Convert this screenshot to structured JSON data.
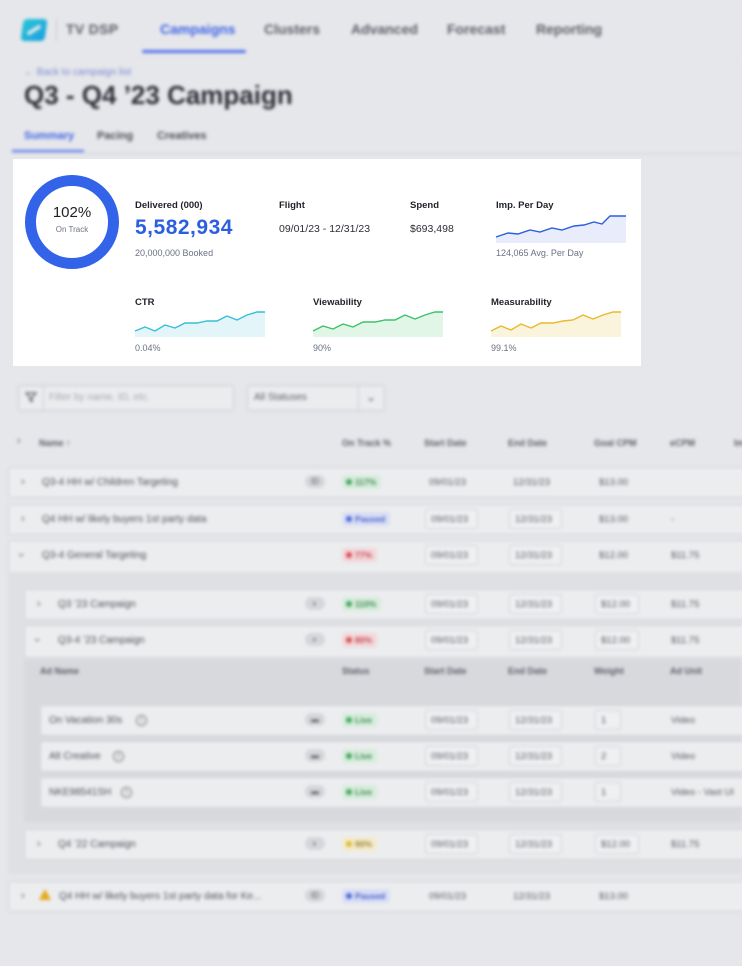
{
  "nav": {
    "brand": "TV DSP",
    "tabs": [
      "Campaigns",
      "Clusters",
      "Advanced",
      "Forecast",
      "Reporting"
    ]
  },
  "header": {
    "back_link": "← Back to campaign list",
    "title": "Q3 - Q4 ’23 Campaign"
  },
  "subtabs": [
    "Summary",
    "Pacing",
    "Creatives"
  ],
  "summary": {
    "pacing_percent": "102%",
    "pacing_status": "On Track",
    "delivered_label": "Delivered (000)",
    "delivered_value": "5,582,934",
    "booked": "20,000,000 Booked",
    "flight_label": "Flight",
    "flight_value": "09/01/23 - 12/31/23",
    "spend_label": "Spend",
    "spend_value": "$693,498",
    "imp_label": "Imp. Per Day",
    "imp_sub": "124,065 Avg. Per Day",
    "ctr_label": "CTR",
    "ctr_value": "0.04%",
    "viewability_label": "Viewability",
    "viewability_value": "90%",
    "measurability_label": "Measurability",
    "measurability_value": "99.1%",
    "colors": {
      "blue": "#2b5fe0",
      "cyan": "#36bfd8",
      "green": "#3cc36a",
      "yellow": "#e8b92a"
    }
  },
  "filters": {
    "search_placeholder": "Filter by name, ID, etc.",
    "status_value": "All Statuses"
  },
  "table": {
    "headers": [
      "Name ↑",
      "On Track %",
      "Start Date",
      "End Date",
      "Goal CPM",
      "eCPM",
      "Im"
    ],
    "rows": [
      {
        "name": "Q3-4 HH w/ Children Targeting",
        "tag": "ID",
        "status": "117%",
        "start": "09/01/23",
        "end": "12/31/23",
        "goal": "$13.00",
        "ecpm": ""
      },
      {
        "name": "Q4 HH w/ likely buyers 1st party data",
        "status": "Paused",
        "start": "09/01/23",
        "end": "12/31/23",
        "goal": "$13.00",
        "ecpm": "-"
      },
      {
        "name": "Q3-4 General Targeting",
        "status": "77%",
        "start": "09/01/23",
        "end": "12/31/23",
        "goal": "$12.00",
        "ecpm": "$11.75"
      },
      {
        "name": "Q3 ’23 Campaign",
        "status": "110%",
        "start": "09/01/23",
        "end": "12/31/23",
        "goal": "$12.00",
        "ecpm": "$11.75"
      },
      {
        "name": "Q3-4 ’23 Campaign",
        "status": "80%",
        "start": "09/01/23",
        "end": "12/31/23",
        "goal": "$12.00",
        "ecpm": "$11.75"
      },
      {
        "name": "Q4 ’22 Campaign",
        "status": "90%",
        "start": "09/01/23",
        "end": "12/31/23",
        "goal": "$12.00",
        "ecpm": "$11.75"
      },
      {
        "name": "Q4 HH w/ likely buyers 1st party data for Ke...",
        "tag": "ID",
        "status": "Paused",
        "start": "09/01/23",
        "end": "12/31/23",
        "goal": "$13.00",
        "ecpm": ""
      }
    ],
    "ad_headers": [
      "Ad Name",
      "Status",
      "Start Date",
      "End Date",
      "Weight",
      "Ad Unit"
    ],
    "ads": [
      {
        "name": "On Vacation 30s",
        "status": "Live",
        "start": "09/01/23",
        "end": "12/31/23",
        "weight": "1",
        "unit": "Video"
      },
      {
        "name": "Alt Creative",
        "status": "Live",
        "start": "09/01/23",
        "end": "12/31/23",
        "weight": "2",
        "unit": "Video"
      },
      {
        "name": "NKE98541SH",
        "status": "Live",
        "start": "09/01/23",
        "end": "12/31/23",
        "weight": "1",
        "unit": "Video - Vast UI"
      }
    ]
  }
}
